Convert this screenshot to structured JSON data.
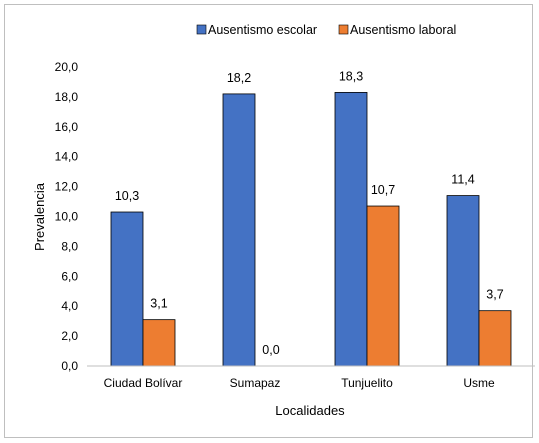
{
  "chart_data": {
    "type": "bar",
    "title": "",
    "xlabel": "Localidades",
    "ylabel": "Prevalencia",
    "categories": [
      "Ciudad Bolívar",
      "Sumapaz",
      "Tunjuelito",
      "Usme"
    ],
    "series": [
      {
        "name": "Ausentismo escolar",
        "color": "#4472c4",
        "values": [
          10.3,
          18.2,
          18.3,
          11.4
        ],
        "labels": [
          "10,3",
          "18,2",
          "18,3",
          "11,4"
        ]
      },
      {
        "name": "Ausentismo laboral",
        "color": "#ed7d31",
        "values": [
          3.1,
          0.0,
          10.7,
          3.7
        ],
        "labels": [
          "3,1",
          "0,0",
          "10,7",
          "3,7"
        ]
      }
    ],
    "ylim": [
      0,
      20
    ],
    "yticks": [
      0,
      2,
      4,
      6,
      8,
      10,
      12,
      14,
      16,
      18,
      20
    ],
    "ytick_labels": [
      "0,0",
      "2,0",
      "4,0",
      "6,0",
      "8,0",
      "10,0",
      "12,0",
      "14,0",
      "16,0",
      "18,0",
      "20,0"
    ],
    "grid": false,
    "legend_position": "top-center"
  }
}
